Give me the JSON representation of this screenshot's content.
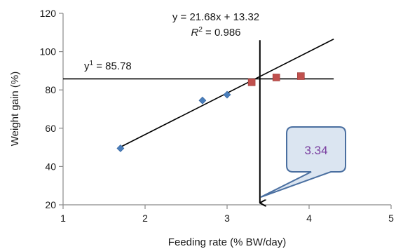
{
  "chart_data": {
    "type": "scatter",
    "xlabel": "Feeding rate (% BW/day)",
    "ylabel": "Weight gain (%)",
    "xlim": [
      1,
      5
    ],
    "ylim": [
      20,
      120
    ],
    "xticks": [
      "1",
      "2",
      "3",
      "4",
      "5"
    ],
    "yticks": [
      "20",
      "40",
      "60",
      "80",
      "100",
      "120"
    ],
    "grid": false,
    "series": [
      {
        "marker": "diamond",
        "color": "#4a7ebb",
        "x": [
          1.7,
          2.7,
          3.0
        ],
        "y": [
          49.5,
          74.5,
          77.5
        ]
      },
      {
        "marker": "square",
        "color": "#c0504d",
        "x": [
          3.3,
          3.6,
          3.9
        ],
        "y": [
          84.0,
          86.5,
          87.2
        ]
      }
    ],
    "regression": {
      "slope": 21.68,
      "intercept": 13.32,
      "x_range": [
        1.7,
        4.3
      ],
      "equation_label": "y = 21.68x + 13.32",
      "r2_symbol": "R",
      "r2_superscript": "2",
      "r2_value": " = 0.986"
    },
    "plateau": {
      "y": 85.78,
      "x_range": [
        1.0,
        4.3
      ],
      "label_prefix": "y",
      "label_superscript": "1",
      "label_value": " = 85.78"
    },
    "intersection": {
      "x_line": 3.4,
      "y_top": 106,
      "y_bottom": 21,
      "callout_value": "3.34"
    }
  }
}
